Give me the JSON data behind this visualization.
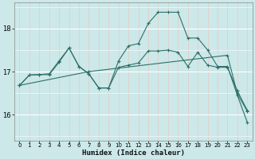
{
  "xlabel": "Humidex (Indice chaleur)",
  "bg_color": "#cce8e8",
  "grid_major_color": "#ffffff",
  "grid_minor_color": "#e8c8c8",
  "line_color": "#2d7068",
  "xmin": -0.5,
  "xmax": 23.5,
  "ymin": 15.4,
  "ymax": 18.6,
  "yticks": [
    16,
    17,
    18
  ],
  "xticks": [
    0,
    1,
    2,
    3,
    4,
    5,
    6,
    7,
    8,
    9,
    10,
    11,
    12,
    13,
    14,
    15,
    16,
    17,
    18,
    19,
    20,
    21,
    22,
    23
  ],
  "series1_x": [
    0,
    1,
    2,
    3,
    4,
    5,
    6,
    7,
    8,
    9,
    10,
    11,
    12,
    13,
    14,
    15,
    16,
    17,
    18,
    19,
    20,
    21,
    22,
    23
  ],
  "series1_y": [
    16.68,
    16.92,
    16.93,
    16.93,
    17.22,
    17.55,
    17.12,
    16.95,
    16.62,
    16.62,
    17.1,
    17.15,
    17.2,
    17.48,
    17.48,
    17.5,
    17.45,
    17.12,
    17.45,
    17.15,
    17.1,
    17.1,
    16.55,
    16.1
  ],
  "series2_x": [
    0,
    1,
    2,
    3,
    4,
    5,
    6,
    7,
    8,
    9,
    10,
    11,
    12,
    13,
    14,
    15,
    16,
    17,
    18,
    19,
    20,
    21,
    22,
    23
  ],
  "series2_y": [
    16.68,
    16.92,
    16.93,
    16.95,
    17.25,
    17.55,
    17.12,
    16.95,
    16.62,
    16.62,
    17.25,
    17.6,
    17.65,
    18.12,
    18.38,
    18.38,
    18.38,
    17.78,
    17.78,
    17.5,
    17.12,
    17.12,
    16.45,
    15.82
  ],
  "series3_x": [
    0,
    7,
    21,
    22,
    23
  ],
  "series3_y": [
    16.68,
    17.0,
    17.38,
    16.48,
    16.08
  ]
}
